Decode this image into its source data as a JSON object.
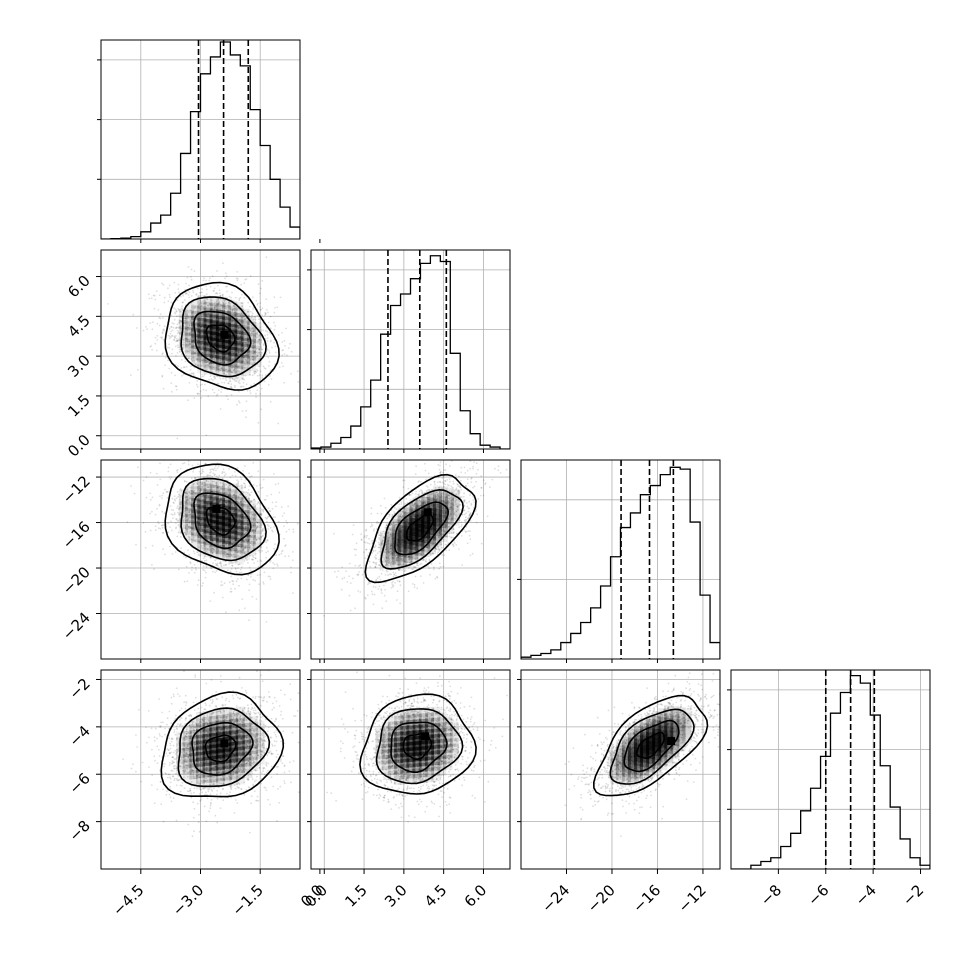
{
  "chart_data": {
    "type": "corner",
    "grid": true,
    "n_params": 4,
    "params": [
      {
        "index": 0,
        "range": [
          -5.5,
          -0.5
        ],
        "ticks": [
          -4.5,
          -3.0,
          -1.5,
          0.0
        ],
        "tick_labels": [
          "−4.5",
          "−3.0",
          "−1.5",
          "0.0"
        ],
        "quantiles": [
          -3.05,
          -2.42,
          -1.8
        ],
        "histogram": {
          "bin_edges": [
            -5.5,
            -5.25,
            -5.0,
            -4.75,
            -4.5,
            -4.25,
            -4.0,
            -3.75,
            -3.5,
            -3.25,
            -3.0,
            -2.75,
            -2.5,
            -2.25,
            -2.0,
            -1.75,
            -1.5,
            -1.25,
            -1.0,
            -0.75,
            -0.5
          ],
          "counts": [
            0,
            2,
            4,
            12,
            36,
            80,
            120,
            230,
            430,
            640,
            830,
            915,
            990,
            925,
            870,
            650,
            470,
            300,
            160,
            60
          ]
        },
        "hist_max": 1000,
        "hist_ticks": [
          0.3,
          0.6,
          0.9
        ]
      },
      {
        "index": 1,
        "range": [
          -0.5,
          7.0
        ],
        "ticks": [
          0.0,
          1.5,
          3.0,
          4.5,
          6.0
        ],
        "tick_labels": [
          "0.0",
          "1.5",
          "3.0",
          "4.5",
          "6.0"
        ],
        "quantiles": [
          2.4,
          3.6,
          4.6
        ],
        "histogram": {
          "bin_edges": [
            -0.5,
            -0.125,
            0.25,
            0.625,
            1.0,
            1.375,
            1.75,
            2.125,
            2.5,
            2.875,
            3.25,
            3.625,
            4.0,
            4.375,
            4.75,
            5.125,
            5.5,
            5.875,
            6.25,
            6.625,
            7.0
          ],
          "counts": [
            5,
            10,
            30,
            60,
            120,
            220,
            360,
            600,
            750,
            810,
            890,
            970,
            1010,
            980,
            500,
            200,
            80,
            20,
            10,
            0
          ]
        },
        "hist_max": 1040,
        "hist_ticks": [
          0.3,
          0.6,
          0.9
        ]
      },
      {
        "index": 2,
        "range": [
          -28.0,
          -10.5
        ],
        "ticks": [
          -24,
          -20,
          -16,
          -12
        ],
        "tick_labels": [
          "−24",
          "−20",
          "−16",
          "−12"
        ],
        "quantiles": [
          -19.2,
          -16.7,
          -14.6
        ],
        "histogram": {
          "bin_edges": [
            -28.0,
            -27.125,
            -26.25,
            -25.375,
            -24.5,
            -23.625,
            -22.75,
            -21.875,
            -21.0,
            -20.125,
            -19.25,
            -18.375,
            -17.5,
            -16.625,
            -15.75,
            -14.875,
            -14.0,
            -13.125,
            -12.25,
            -11.375,
            -10.5
          ],
          "counts": [
            10,
            20,
            30,
            50,
            90,
            140,
            200,
            280,
            400,
            560,
            720,
            800,
            900,
            950,
            1010,
            1050,
            1040,
            750,
            350,
            90
          ]
        },
        "hist_max": 1090,
        "hist_ticks": [
          0.4,
          0.8
        ]
      },
      {
        "index": 3,
        "range": [
          -10.0,
          -1.6
        ],
        "ticks": [
          -8,
          -6,
          -4,
          -2
        ],
        "tick_labels": [
          "−8",
          "−6",
          "−4",
          "−2"
        ],
        "quantiles": [
          -6.0,
          -4.95,
          -3.95
        ],
        "histogram": {
          "bin_edges": [
            -10.0,
            -9.58,
            -9.16,
            -8.74,
            -8.32,
            -7.9,
            -7.48,
            -7.06,
            -6.64,
            -6.22,
            -5.8,
            -5.38,
            -4.96,
            -4.54,
            -4.12,
            -3.7,
            -3.28,
            -2.86,
            -2.44,
            -2.02,
            -1.6
          ],
          "counts": [
            0,
            0,
            20,
            40,
            60,
            120,
            190,
            310,
            430,
            600,
            830,
            940,
            1030,
            990,
            820,
            550,
            330,
            160,
            60,
            20
          ]
        },
        "hist_max": 1060,
        "hist_ticks": [
          0.3,
          0.6,
          0.9
        ]
      }
    ],
    "pairs": [
      {
        "x": 0,
        "y": 1,
        "center": [
          -2.5,
          3.7
        ],
        "sx": 0.7,
        "sy": 1.0,
        "rho": -0.2,
        "peak": [
          -2.4,
          3.8
        ]
      },
      {
        "x": 0,
        "y": 2,
        "center": [
          -2.5,
          -15.8
        ],
        "sx": 0.7,
        "sy": 2.4,
        "rho": -0.25,
        "peak": [
          -2.6,
          -14.8
        ]
      },
      {
        "x": 1,
        "y": 2,
        "center": [
          3.6,
          -16.5
        ],
        "sx": 1.0,
        "sy": 2.3,
        "rho": 0.6,
        "peak": [
          3.9,
          -15.1
        ]
      },
      {
        "x": 0,
        "y": 3,
        "center": [
          -2.5,
          -4.9
        ],
        "sx": 0.75,
        "sy": 1.1,
        "rho": 0.15,
        "peak": [
          -2.4,
          -4.7
        ]
      },
      {
        "x": 1,
        "y": 3,
        "center": [
          3.5,
          -4.8
        ],
        "sx": 1.05,
        "sy": 1.05,
        "rho": 0.1,
        "peak": [
          3.8,
          -4.4
        ]
      },
      {
        "x": 2,
        "y": 3,
        "center": [
          -16.6,
          -4.8
        ],
        "sx": 2.4,
        "sy": 1.05,
        "rho": 0.6,
        "peak": [
          -14.8,
          -4.6
        ]
      }
    ],
    "contour_levels_sigma": [
      0.5,
      1.0,
      1.5,
      2.0
    ]
  }
}
